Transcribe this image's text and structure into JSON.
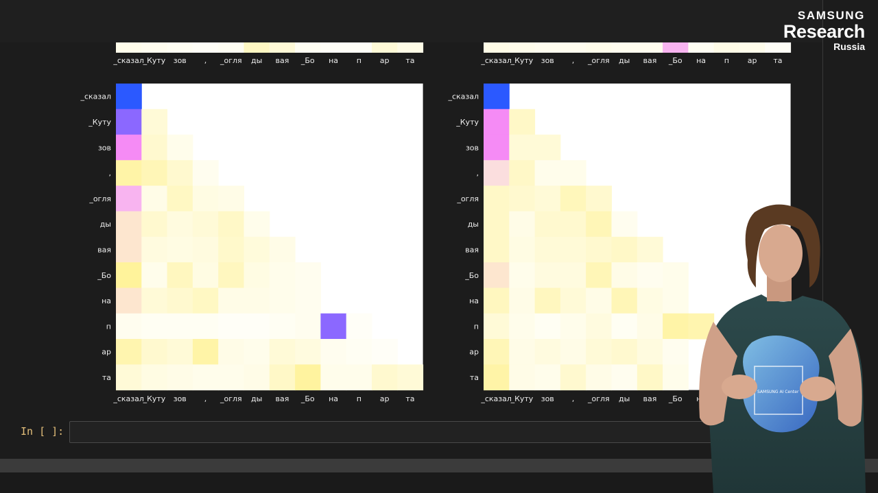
{
  "logo": {
    "line1": "SAMSUNG",
    "line2": "Research",
    "line3": "Russia"
  },
  "cell": {
    "prompt": "In [ ]:"
  },
  "shirt_text": "SAMSUNG AI Center",
  "colors": {
    "background": "#1c1c1c",
    "prompt": "#e5c07b",
    "strong_blue": "#2b59ff",
    "violet": "#8b68ff",
    "magenta": "#f58bf5",
    "pale_yellow": "#fffbe0"
  },
  "chart_data": [
    {
      "type": "heatmap",
      "tokens": [
        "_сказал",
        "_Куту",
        "зов",
        ",",
        "_огля",
        "ды",
        "вая",
        "_Бо",
        "на",
        "п",
        "ар",
        "та"
      ],
      "top_strip": [
        0.05,
        0.04,
        0.03,
        0.02,
        0.03,
        0.15,
        0.1,
        0.03,
        0.02,
        0.02,
        0.1,
        0.06
      ],
      "cells": [
        {
          "r": 0,
          "c": 0,
          "v": "blue"
        },
        {
          "r": 1,
          "c": 0,
          "v": "violet"
        },
        {
          "r": 1,
          "c": 1,
          "v": 0.1
        },
        {
          "r": 2,
          "c": 0,
          "v": "magenta"
        },
        {
          "r": 2,
          "c": 1,
          "v": 0.12
        },
        {
          "r": 2,
          "c": 2,
          "v": 0.05
        },
        {
          "r": 3,
          "c": 0,
          "v": 0.22
        },
        {
          "r": 3,
          "c": 1,
          "v": 0.18
        },
        {
          "r": 3,
          "c": 2,
          "v": 0.12
        },
        {
          "r": 3,
          "c": 3,
          "v": 0.04
        },
        {
          "r": 4,
          "c": 0,
          "v": "pink"
        },
        {
          "r": 4,
          "c": 1,
          "v": 0.06
        },
        {
          "r": 4,
          "c": 2,
          "v": 0.15
        },
        {
          "r": 4,
          "c": 3,
          "v": 0.07
        },
        {
          "r": 4,
          "c": 4,
          "v": 0.06
        },
        {
          "r": 5,
          "c": 0,
          "v": "peach"
        },
        {
          "r": 5,
          "c": 1,
          "v": 0.12
        },
        {
          "r": 5,
          "c": 2,
          "v": 0.08
        },
        {
          "r": 5,
          "c": 3,
          "v": 0.1
        },
        {
          "r": 5,
          "c": 4,
          "v": 0.14
        },
        {
          "r": 5,
          "c": 5,
          "v": 0.05
        },
        {
          "r": 6,
          "c": 0,
          "v": "peach"
        },
        {
          "r": 6,
          "c": 1,
          "v": 0.08
        },
        {
          "r": 6,
          "c": 2,
          "v": 0.07
        },
        {
          "r": 6,
          "c": 3,
          "v": 0.08
        },
        {
          "r": 6,
          "c": 4,
          "v": 0.13
        },
        {
          "r": 6,
          "c": 5,
          "v": 0.09
        },
        {
          "r": 6,
          "c": 6,
          "v": 0.06
        },
        {
          "r": 7,
          "c": 0,
          "v": 0.25
        },
        {
          "r": 7,
          "c": 1,
          "v": 0.05
        },
        {
          "r": 7,
          "c": 2,
          "v": 0.16
        },
        {
          "r": 7,
          "c": 3,
          "v": 0.07
        },
        {
          "r": 7,
          "c": 4,
          "v": 0.16
        },
        {
          "r": 7,
          "c": 5,
          "v": 0.07
        },
        {
          "r": 7,
          "c": 6,
          "v": 0.05
        },
        {
          "r": 7,
          "c": 7,
          "v": 0.04
        },
        {
          "r": 8,
          "c": 0,
          "v": "peach"
        },
        {
          "r": 8,
          "c": 1,
          "v": 0.1
        },
        {
          "r": 8,
          "c": 2,
          "v": 0.12
        },
        {
          "r": 8,
          "c": 3,
          "v": 0.15
        },
        {
          "r": 8,
          "c": 4,
          "v": 0.06
        },
        {
          "r": 8,
          "c": 5,
          "v": 0.06
        },
        {
          "r": 8,
          "c": 6,
          "v": 0.05
        },
        {
          "r": 8,
          "c": 7,
          "v": 0.04
        },
        {
          "r": 9,
          "c": 0,
          "v": 0.04
        },
        {
          "r": 9,
          "c": 1,
          "v": 0.03
        },
        {
          "r": 9,
          "c": 2,
          "v": 0.03
        },
        {
          "r": 9,
          "c": 3,
          "v": 0.03
        },
        {
          "r": 9,
          "c": 4,
          "v": 0.02
        },
        {
          "r": 9,
          "c": 5,
          "v": 0.02
        },
        {
          "r": 9,
          "c": 6,
          "v": 0.03
        },
        {
          "r": 9,
          "c": 7,
          "v": 0.04
        },
        {
          "r": 9,
          "c": 8,
          "v": "violet"
        },
        {
          "r": 9,
          "c": 9,
          "v": 0.02
        },
        {
          "r": 10,
          "c": 0,
          "v": 0.2
        },
        {
          "r": 10,
          "c": 1,
          "v": 0.12
        },
        {
          "r": 10,
          "c": 2,
          "v": 0.1
        },
        {
          "r": 10,
          "c": 3,
          "v": 0.22
        },
        {
          "r": 10,
          "c": 4,
          "v": 0.06
        },
        {
          "r": 10,
          "c": 5,
          "v": 0.05
        },
        {
          "r": 10,
          "c": 6,
          "v": 0.1
        },
        {
          "r": 10,
          "c": 7,
          "v": 0.08
        },
        {
          "r": 10,
          "c": 8,
          "v": 0.04
        },
        {
          "r": 10,
          "c": 9,
          "v": 0.03
        },
        {
          "r": 10,
          "c": 10,
          "v": 0.02
        },
        {
          "r": 11,
          "c": 0,
          "v": 0.1
        },
        {
          "r": 11,
          "c": 1,
          "v": 0.07
        },
        {
          "r": 11,
          "c": 2,
          "v": 0.06
        },
        {
          "r": 11,
          "c": 3,
          "v": 0.05
        },
        {
          "r": 11,
          "c": 4,
          "v": 0.05
        },
        {
          "r": 11,
          "c": 5,
          "v": 0.06
        },
        {
          "r": 11,
          "c": 6,
          "v": 0.14
        },
        {
          "r": 11,
          "c": 7,
          "v": 0.24
        },
        {
          "r": 11,
          "c": 8,
          "v": 0.05
        },
        {
          "r": 11,
          "c": 9,
          "v": 0.05
        },
        {
          "r": 11,
          "c": 10,
          "v": 0.12
        },
        {
          "r": 11,
          "c": 11,
          "v": 0.1
        }
      ]
    },
    {
      "type": "heatmap",
      "tokens": [
        "_сказал",
        "_Куту",
        "зов",
        ",",
        "_огля",
        "ды",
        "вая",
        "_Бо",
        "на",
        "п",
        "ар",
        "та"
      ],
      "top_strip": [
        0.06,
        0.05,
        0.04,
        0.04,
        0.05,
        0.04,
        0.04,
        "pink",
        0.03,
        0.06,
        0.05,
        0.02
      ],
      "cells": [
        {
          "r": 0,
          "c": 0,
          "v": "blue"
        },
        {
          "r": 1,
          "c": 0,
          "v": "magenta"
        },
        {
          "r": 1,
          "c": 1,
          "v": 0.14
        },
        {
          "r": 2,
          "c": 0,
          "v": "magenta"
        },
        {
          "r": 2,
          "c": 1,
          "v": 0.1
        },
        {
          "r": 2,
          "c": 2,
          "v": 0.1
        },
        {
          "r": 3,
          "c": 0,
          "v": "peach2"
        },
        {
          "r": 3,
          "c": 1,
          "v": 0.14
        },
        {
          "r": 3,
          "c": 2,
          "v": 0.05
        },
        {
          "r": 3,
          "c": 3,
          "v": 0.05
        },
        {
          "r": 4,
          "c": 0,
          "v": 0.14
        },
        {
          "r": 4,
          "c": 1,
          "v": 0.12
        },
        {
          "r": 4,
          "c": 2,
          "v": 0.1
        },
        {
          "r": 4,
          "c": 3,
          "v": 0.17
        },
        {
          "r": 4,
          "c": 4,
          "v": 0.12
        },
        {
          "r": 5,
          "c": 0,
          "v": 0.14
        },
        {
          "r": 5,
          "c": 1,
          "v": 0.06
        },
        {
          "r": 5,
          "c": 2,
          "v": 0.12
        },
        {
          "r": 5,
          "c": 3,
          "v": 0.12
        },
        {
          "r": 5,
          "c": 4,
          "v": 0.18
        },
        {
          "r": 5,
          "c": 5,
          "v": 0.04
        },
        {
          "r": 6,
          "c": 0,
          "v": 0.14
        },
        {
          "r": 6,
          "c": 1,
          "v": 0.07
        },
        {
          "r": 6,
          "c": 2,
          "v": 0.1
        },
        {
          "r": 6,
          "c": 3,
          "v": 0.1
        },
        {
          "r": 6,
          "c": 4,
          "v": 0.12
        },
        {
          "r": 6,
          "c": 5,
          "v": 0.14
        },
        {
          "r": 6,
          "c": 6,
          "v": 0.1
        },
        {
          "r": 7,
          "c": 0,
          "v": "peach"
        },
        {
          "r": 7,
          "c": 1,
          "v": 0.05
        },
        {
          "r": 7,
          "c": 2,
          "v": 0.08
        },
        {
          "r": 7,
          "c": 3,
          "v": 0.08
        },
        {
          "r": 7,
          "c": 4,
          "v": 0.18
        },
        {
          "r": 7,
          "c": 5,
          "v": 0.06
        },
        {
          "r": 7,
          "c": 6,
          "v": 0.04
        },
        {
          "r": 7,
          "c": 7,
          "v": 0.05
        },
        {
          "r": 8,
          "c": 0,
          "v": 0.16
        },
        {
          "r": 8,
          "c": 1,
          "v": 0.06
        },
        {
          "r": 8,
          "c": 2,
          "v": 0.16
        },
        {
          "r": 8,
          "c": 3,
          "v": 0.1
        },
        {
          "r": 8,
          "c": 4,
          "v": 0.06
        },
        {
          "r": 8,
          "c": 5,
          "v": 0.18
        },
        {
          "r": 8,
          "c": 6,
          "v": 0.07
        },
        {
          "r": 8,
          "c": 7,
          "v": 0.05
        },
        {
          "r": 9,
          "c": 0,
          "v": 0.1
        },
        {
          "r": 9,
          "c": 1,
          "v": 0.05
        },
        {
          "r": 9,
          "c": 2,
          "v": 0.03
        },
        {
          "r": 9,
          "c": 3,
          "v": 0.05
        },
        {
          "r": 9,
          "c": 4,
          "v": 0.08
        },
        {
          "r": 9,
          "c": 5,
          "v": 0.03
        },
        {
          "r": 9,
          "c": 6,
          "v": 0.06
        },
        {
          "r": 9,
          "c": 7,
          "v": 0.22
        },
        {
          "r": 9,
          "c": 8,
          "v": 0.2
        },
        {
          "r": 10,
          "c": 0,
          "v": 0.18
        },
        {
          "r": 10,
          "c": 1,
          "v": 0.06
        },
        {
          "r": 10,
          "c": 2,
          "v": 0.08
        },
        {
          "r": 10,
          "c": 3,
          "v": 0.06
        },
        {
          "r": 10,
          "c": 4,
          "v": 0.1
        },
        {
          "r": 10,
          "c": 5,
          "v": 0.12
        },
        {
          "r": 10,
          "c": 6,
          "v": 0.08
        },
        {
          "r": 10,
          "c": 7,
          "v": 0.04
        },
        {
          "r": 11,
          "c": 0,
          "v": 0.22
        },
        {
          "r": 11,
          "c": 1,
          "v": 0.06
        },
        {
          "r": 11,
          "c": 2,
          "v": 0.05
        },
        {
          "r": 11,
          "c": 3,
          "v": 0.12
        },
        {
          "r": 11,
          "c": 4,
          "v": 0.06
        },
        {
          "r": 11,
          "c": 5,
          "v": 0.04
        },
        {
          "r": 11,
          "c": 6,
          "v": 0.14
        },
        {
          "r": 11,
          "c": 7,
          "v": 0.05
        }
      ]
    }
  ]
}
